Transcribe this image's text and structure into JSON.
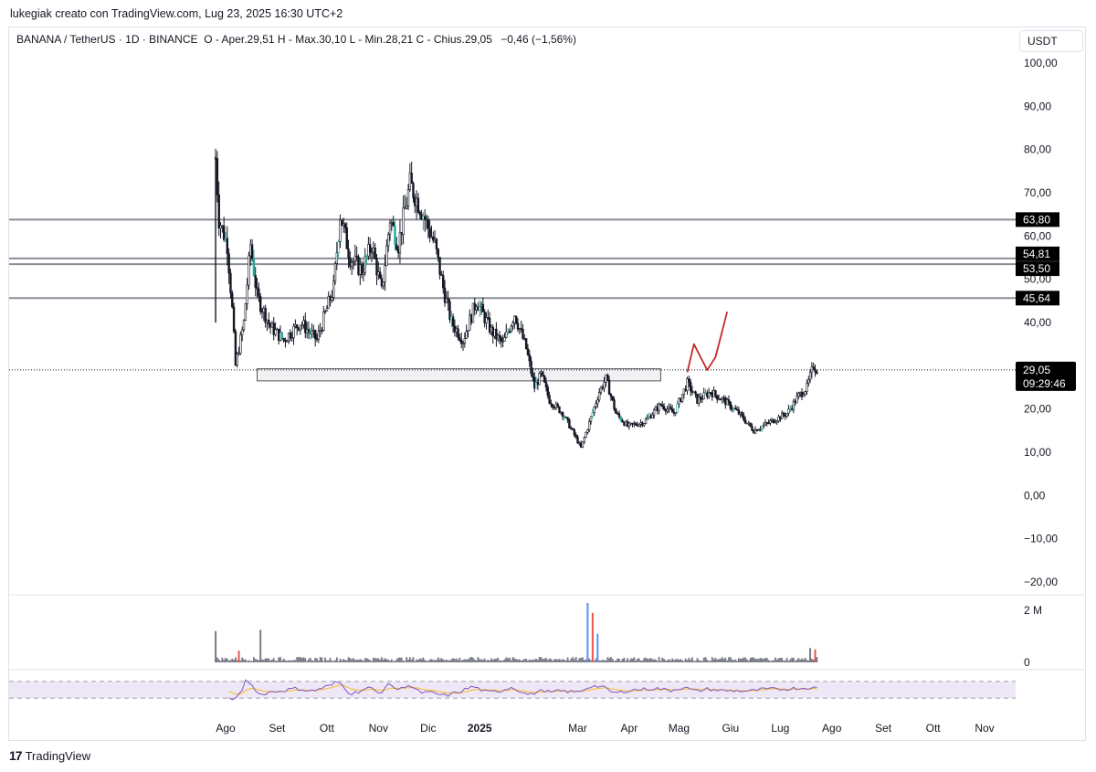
{
  "caption": "lukegiak creato con TradingView.com, Lug 23, 2025 16:30 UTC+2",
  "legend": {
    "symbol": "BANANA / TetherUS · 1D · BINANCE",
    "ohlc": "O - Aper.29,51  H - Max.30,10  L - Min.28,21  C - Chius.29,05",
    "change": "−0,46 (−1,56%)"
  },
  "currency_button": "USDT",
  "footer_brand": "TradingView",
  "colors": {
    "candle": "#131722",
    "green_accent": "#26a69a",
    "levels": "#8a8d95",
    "drawing": "#c62828",
    "volume": "#787b86",
    "volume_blue": "#5b8ff9",
    "volume_red": "#ef5350",
    "rsi_line": "#7e57c2",
    "rsi_ma": "#f5c242",
    "rsi_band": "#ede7f6"
  },
  "chart_data": {
    "type": "candlestick",
    "y_axis": {
      "range": [
        -20,
        100
      ],
      "ticks": [
        {
          "v": 100,
          "label": "100,00"
        },
        {
          "v": 90,
          "label": "90,00"
        },
        {
          "v": 80,
          "label": "80,00"
        },
        {
          "v": 70,
          "label": "70,00"
        },
        {
          "v": 60,
          "label": "60,00"
        },
        {
          "v": 50,
          "label": "50,00"
        },
        {
          "v": 40,
          "label": "40,00"
        },
        {
          "v": 20,
          "label": "20,00"
        },
        {
          "v": 10,
          "label": "10,00"
        },
        {
          "v": 0,
          "label": "0,00"
        },
        {
          "v": -10,
          "label": "−10,00"
        },
        {
          "v": -20,
          "label": "−20,00"
        }
      ]
    },
    "x_axis": {
      "labels": [
        "Ago",
        "Set",
        "Ott",
        "Nov",
        "Dic",
        "2025",
        "Mar",
        "Apr",
        "Mag",
        "Giu",
        "Lug",
        "Ago",
        "Set",
        "Ott",
        "Nov"
      ],
      "bold_label": "2025"
    },
    "horizontal_levels": [
      {
        "value": 63.8,
        "label": "63,80"
      },
      {
        "value": 54.81,
        "label": "54,81"
      },
      {
        "value": 53.5,
        "label": "53,50"
      },
      {
        "value": 45.64,
        "label": "45,64"
      }
    ],
    "last_price": {
      "value": 29.05,
      "label": "29,05",
      "countdown": "09:29:46"
    },
    "support_zone": {
      "from": "2024-08-20",
      "to": "2025-04-20",
      "low": 26.5,
      "high": 29.3
    },
    "price_path": [
      {
        "date": "2024-07-26",
        "close": 78
      },
      {
        "date": "2024-07-28",
        "close": 64
      },
      {
        "date": "2024-08-02",
        "close": 58
      },
      {
        "date": "2024-08-05",
        "close": 43
      },
      {
        "date": "2024-08-07",
        "close": 30
      },
      {
        "date": "2024-08-12",
        "close": 40
      },
      {
        "date": "2024-08-16",
        "close": 58
      },
      {
        "date": "2024-08-20",
        "close": 46
      },
      {
        "date": "2024-08-28",
        "close": 39
      },
      {
        "date": "2024-09-05",
        "close": 36
      },
      {
        "date": "2024-09-15",
        "close": 40
      },
      {
        "date": "2024-09-25",
        "close": 36
      },
      {
        "date": "2024-10-05",
        "close": 48
      },
      {
        "date": "2024-10-09",
        "close": 65
      },
      {
        "date": "2024-10-15",
        "close": 55
      },
      {
        "date": "2024-10-22",
        "close": 52
      },
      {
        "date": "2024-10-28",
        "close": 58
      },
      {
        "date": "2024-11-03",
        "close": 47
      },
      {
        "date": "2024-11-08",
        "close": 64
      },
      {
        "date": "2024-11-13",
        "close": 58
      },
      {
        "date": "2024-11-20",
        "close": 72
      },
      {
        "date": "2024-11-27",
        "close": 66
      },
      {
        "date": "2024-12-05",
        "close": 58
      },
      {
        "date": "2024-12-10",
        "close": 48
      },
      {
        "date": "2024-12-15",
        "close": 40
      },
      {
        "date": "2024-12-22",
        "close": 36
      },
      {
        "date": "2024-12-30",
        "close": 45
      },
      {
        "date": "2025-01-08",
        "close": 38
      },
      {
        "date": "2025-01-15",
        "close": 35
      },
      {
        "date": "2025-01-22",
        "close": 42
      },
      {
        "date": "2025-01-29",
        "close": 34
      },
      {
        "date": "2025-02-03",
        "close": 25
      },
      {
        "date": "2025-02-07",
        "close": 28
      },
      {
        "date": "2025-02-12",
        "close": 22
      },
      {
        "date": "2025-02-20",
        "close": 19
      },
      {
        "date": "2025-02-27",
        "close": 14
      },
      {
        "date": "2025-03-03",
        "close": 11
      },
      {
        "date": "2025-03-09",
        "close": 18
      },
      {
        "date": "2025-03-14",
        "close": 24
      },
      {
        "date": "2025-03-18",
        "close": 27
      },
      {
        "date": "2025-03-24",
        "close": 19
      },
      {
        "date": "2025-03-31",
        "close": 16
      },
      {
        "date": "2025-04-10",
        "close": 17
      },
      {
        "date": "2025-04-20",
        "close": 21
      },
      {
        "date": "2025-04-28",
        "close": 19
      },
      {
        "date": "2025-05-06",
        "close": 26
      },
      {
        "date": "2025-05-12",
        "close": 22
      },
      {
        "date": "2025-05-20",
        "close": 24
      },
      {
        "date": "2025-05-28",
        "close": 22
      },
      {
        "date": "2025-06-06",
        "close": 19
      },
      {
        "date": "2025-06-15",
        "close": 15
      },
      {
        "date": "2025-06-25",
        "close": 17
      },
      {
        "date": "2025-07-05",
        "close": 19
      },
      {
        "date": "2025-07-12",
        "close": 23
      },
      {
        "date": "2025-07-17",
        "close": 25
      },
      {
        "date": "2025-07-21",
        "close": 30
      },
      {
        "date": "2025-07-23",
        "close": 29.05
      }
    ],
    "projection_drawing": [
      {
        "date": "2025-05-06",
        "value": 28.5
      },
      {
        "date": "2025-05-10",
        "value": 35
      },
      {
        "date": "2025-05-14",
        "value": 32
      },
      {
        "date": "2025-05-18",
        "value": 29
      },
      {
        "date": "2025-05-23",
        "value": 32
      },
      {
        "date": "2025-05-30",
        "value": 42.5
      }
    ],
    "volume": {
      "ticks": [
        {
          "v": 2000000,
          "label": "2 M"
        },
        {
          "v": 0,
          "label": "0"
        }
      ],
      "spikes": [
        {
          "date": "2024-07-26",
          "value": 1200000
        },
        {
          "date": "2024-08-09",
          "value": 450000
        },
        {
          "date": "2024-08-22",
          "value": 1250000
        },
        {
          "date": "2025-03-07",
          "value": 2280000
        },
        {
          "date": "2025-03-10",
          "value": 1900000
        },
        {
          "date": "2025-03-13",
          "value": 1100000
        },
        {
          "date": "2025-07-19",
          "value": 550000
        },
        {
          "date": "2025-07-22",
          "value": 500000
        }
      ]
    },
    "rsi": {
      "range": [
        0,
        100
      ],
      "upper": 70,
      "lower": 30
    }
  }
}
